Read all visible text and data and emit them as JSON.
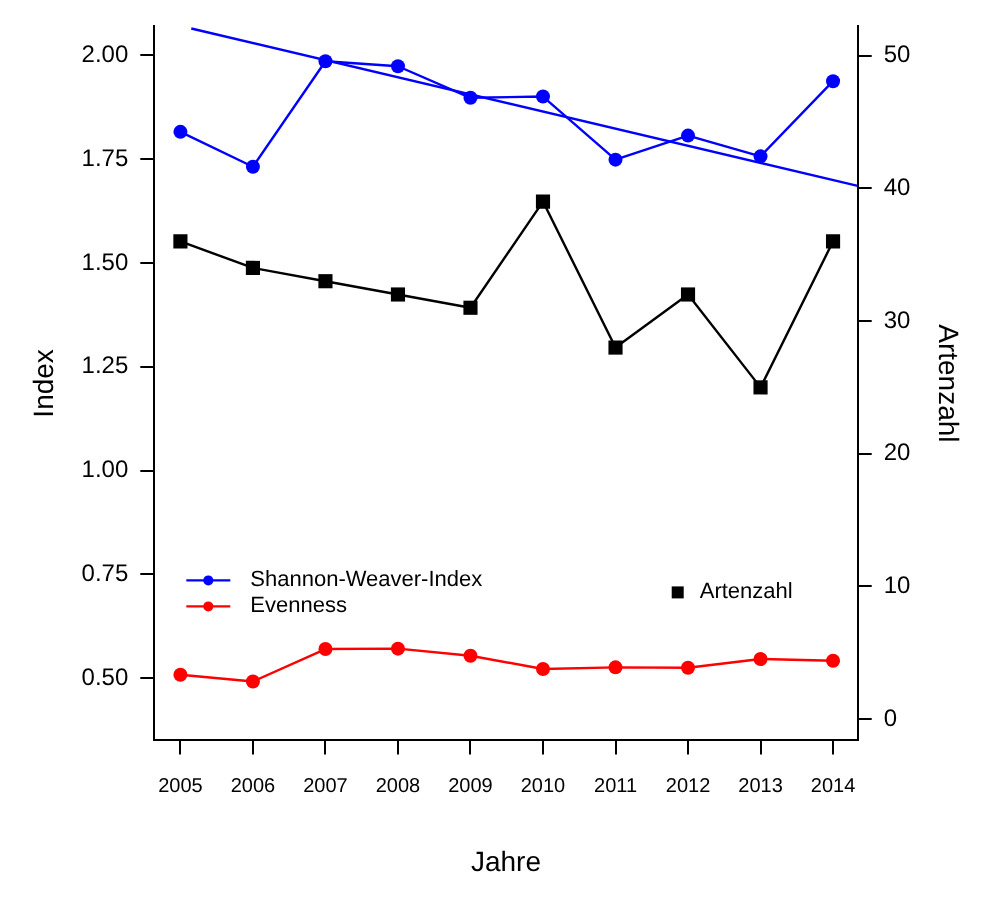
{
  "chart_data": {
    "type": "line",
    "xlabel": "Jahre",
    "ylabel": "Index",
    "y2label": "Artenzahl",
    "x": [
      2005,
      2006,
      2007,
      2008,
      2009,
      2010,
      2011,
      2012,
      2013,
      2014
    ],
    "xlim": [
      2004.64,
      2014.34
    ],
    "xticks": [
      2005,
      2006,
      2007,
      2008,
      2009,
      2010,
      2011,
      2012,
      2013,
      2014
    ],
    "ylim": [
      0.35,
      2.07
    ],
    "yticks": [
      {
        "value": 0.5,
        "label": "0.50"
      },
      {
        "value": 0.75,
        "label": "0.75"
      },
      {
        "value": 1,
        "label": "1.00"
      },
      {
        "value": 1.25,
        "label": "1.25"
      },
      {
        "value": 1.5,
        "label": "1.50"
      },
      {
        "value": 1.75,
        "label": "1.75"
      },
      {
        "value": 2,
        "label": "2.00"
      }
    ],
    "y2lim": [
      -1.6,
      52.2
    ],
    "y2ticks": [
      0,
      10,
      20,
      30,
      40,
      50
    ],
    "grid": false,
    "legend": "bottom left",
    "line_style": "solid",
    "series": [
      {
        "name": "Shannon-Weaver-Index",
        "color": "#0000ff",
        "marker": "circle",
        "values": [
          1.816,
          1.732,
          1.986,
          1.974,
          1.898,
          1.901,
          1.749,
          1.807,
          1.757,
          1.938
        ]
      },
      {
        "name": "Evenness",
        "color": "#ff0000",
        "marker": "circle",
        "values": [
          0.508,
          0.492,
          0.57,
          0.571,
          0.554,
          0.522,
          0.526,
          0.525,
          0.546,
          0.542
        ]
      },
      {
        "name": "Artenzahl",
        "color": "#000000",
        "marker": "square",
        "axis": "y2",
        "values": [
          36,
          34,
          33,
          32,
          31,
          39,
          28,
          32,
          25,
          36
        ]
      },
      {
        "color": "#0000ff",
        "marker": "none",
        "x": [
          2005.15,
          2014.34
        ],
        "values": [
          2.065,
          1.686
        ]
      }
    ]
  }
}
